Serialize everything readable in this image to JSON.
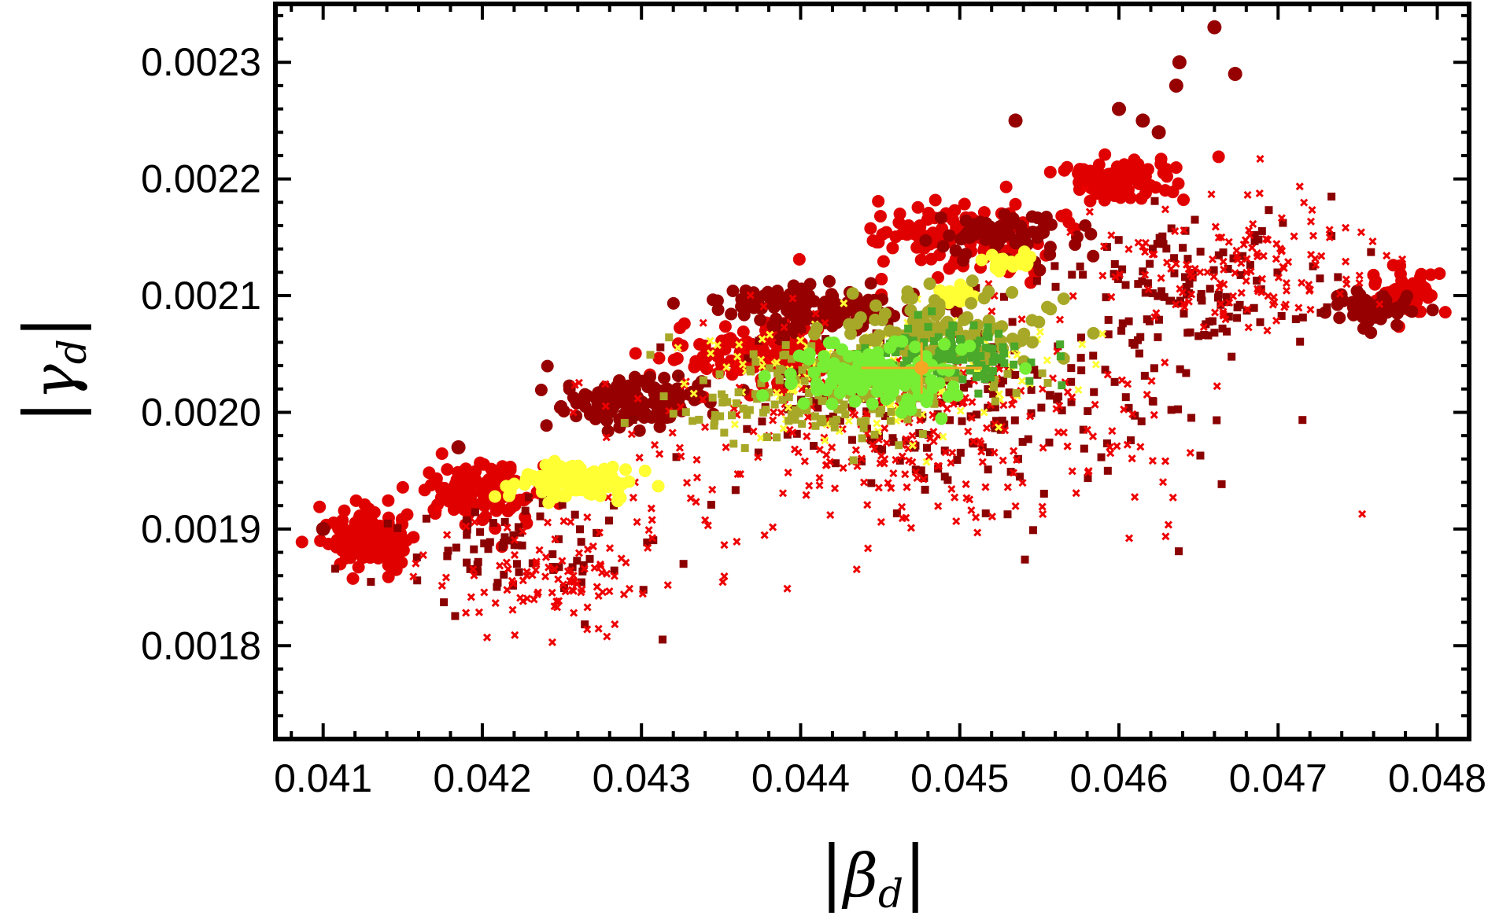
{
  "chart_data": {
    "type": "scatter",
    "title": "",
    "xlabel": "|β_d|",
    "ylabel": "|γ_d|",
    "xlabel_parts": {
      "bar_left": "|",
      "symbol": "β",
      "subscript": "d",
      "bar_right": "|"
    },
    "ylabel_parts": {
      "bar_left": "|",
      "symbol": "γ",
      "subscript": "d",
      "bar_right": "|"
    },
    "xlim": [
      0.0407,
      0.0482
    ],
    "ylim": [
      0.00172,
      0.00235
    ],
    "grid": false,
    "legend": "none",
    "x_ticks": [
      {
        "value": 0.041,
        "label": "0.041"
      },
      {
        "value": 0.042,
        "label": "0.042"
      },
      {
        "value": 0.043,
        "label": "0.043"
      },
      {
        "value": 0.044,
        "label": "0.044"
      },
      {
        "value": 0.045,
        "label": "0.045"
      },
      {
        "value": 0.046,
        "label": "0.046"
      },
      {
        "value": 0.047,
        "label": "0.047"
      },
      {
        "value": 0.048,
        "label": "0.048"
      }
    ],
    "y_ticks": [
      {
        "value": 0.0018,
        "label": "0.0018"
      },
      {
        "value": 0.0019,
        "label": "0.0019"
      },
      {
        "value": 0.002,
        "label": "0.0020"
      },
      {
        "value": 0.0021,
        "label": "0.0021"
      },
      {
        "value": 0.0022,
        "label": "0.0022"
      },
      {
        "value": 0.0023,
        "label": "0.0023"
      }
    ],
    "series": [
      {
        "color": "#e00000",
        "marker": "circle",
        "clusters": [
          {
            "center": [
              0.0413,
              0.00189
            ],
            "spread": [
              0.00025,
              2.5e-05
            ],
            "count": 140
          },
          {
            "center": [
              0.042,
              0.00193
            ],
            "spread": [
              0.0004,
              2.5e-05
            ],
            "count": 120
          },
          {
            "center": [
              0.0438,
              0.00205
            ],
            "spread": [
              0.0006,
              3e-05
            ],
            "count": 130
          },
          {
            "center": [
              0.045,
              0.00215
            ],
            "spread": [
              0.0006,
              3e-05
            ],
            "count": 130
          },
          {
            "center": [
              0.046,
              0.0022
            ],
            "spread": [
              0.0004,
              2e-05
            ],
            "count": 80
          },
          {
            "center": [
              0.0478,
              0.0021
            ],
            "spread": [
              0.00025,
              2e-05
            ],
            "count": 60
          }
        ]
      },
      {
        "color": "#960000",
        "marker": "circle",
        "clusters": [
          {
            "center": [
              0.0429,
              0.00201
            ],
            "spread": [
              0.0005,
              2.2e-05
            ],
            "count": 130
          },
          {
            "center": [
              0.0441,
              0.00209
            ],
            "spread": [
              0.0006,
              2e-05
            ],
            "count": 130
          },
          {
            "center": [
              0.0453,
              0.00215
            ],
            "spread": [
              0.0005,
              1.8e-05
            ],
            "count": 70
          },
          {
            "center": [
              0.0476,
              0.00209
            ],
            "spread": [
              0.0003,
              1.5e-05
            ],
            "count": 50
          }
        ]
      },
      {
        "color": "#960000",
        "marker": "circle",
        "points": [
          [
            0.041,
            0.0019
          ],
          [
            0.04185,
            0.00197
          ],
          [
            0.04535,
            0.00225
          ],
          [
            0.046,
            0.00226
          ],
          [
            0.04615,
            0.00225
          ],
          [
            0.04625,
            0.00224
          ],
          [
            0.04636,
            0.00228
          ],
          [
            0.04638,
            0.0023
          ],
          [
            0.0466,
            0.00233
          ],
          [
            0.04673,
            0.00229
          ]
        ]
      },
      {
        "color": "#8b0000",
        "marker": "square",
        "clusters": [
          {
            "center": [
              0.045,
              0.00201
            ],
            "spread": [
              0.0015,
              8e-05
            ],
            "count": 220
          },
          {
            "center": [
              0.0465,
              0.00211
            ],
            "spread": [
              0.0008,
              6e-05
            ],
            "count": 120
          },
          {
            "center": [
              0.0422,
              0.00188
            ],
            "spread": [
              0.0008,
              5e-05
            ],
            "count": 80
          }
        ]
      },
      {
        "color": "#ee0000",
        "marker": "cross",
        "clusters": [
          {
            "center": [
              0.0446,
              0.00199
            ],
            "spread": [
              0.0017,
              0.0001
            ],
            "count": 340
          },
          {
            "center": [
              0.0468,
              0.00213
            ],
            "spread": [
              0.0009,
              6e-05
            ],
            "count": 140
          },
          {
            "center": [
              0.0425,
              0.00186
            ],
            "spread": [
              0.0008,
              5e-05
            ],
            "count": 110
          }
        ]
      },
      {
        "color": "#ffff33",
        "marker": "circle",
        "clusters": [
          {
            "center": [
              0.0426,
              0.00194
            ],
            "spread": [
              0.00035,
              1.5e-05
            ],
            "count": 130
          },
          {
            "center": [
              0.0453,
              0.00213
            ],
            "spread": [
              0.00015,
              8e-06
            ],
            "count": 25
          },
          {
            "center": [
              0.045,
              0.0021
            ],
            "spread": [
              0.00012,
              8e-06
            ],
            "count": 20
          }
        ]
      },
      {
        "color": "#ffff33",
        "marker": "cross",
        "clusters": [
          {
            "center": [
              0.0445,
              0.00203
            ],
            "spread": [
              0.001,
              5e-05
            ],
            "count": 170
          }
        ]
      },
      {
        "color": "#a8a828",
        "marker": "square",
        "clusters": [
          {
            "center": [
              0.0443,
              0.00202
            ],
            "spread": [
              0.0009,
              4e-05
            ],
            "count": 230
          }
        ]
      },
      {
        "color": "#a8a828",
        "marker": "circle",
        "clusters": [
          {
            "center": [
              0.0449,
              0.00207
            ],
            "spread": [
              0.0007,
              4e-05
            ],
            "count": 110
          }
        ]
      },
      {
        "color": "#4aa82a",
        "marker": "square",
        "clusters": [
          {
            "center": [
              0.045,
              0.00205
            ],
            "spread": [
              0.0005,
              2.5e-05
            ],
            "count": 110
          }
        ]
      },
      {
        "color": "#77ee33",
        "marker": "circle",
        "clusters": [
          {
            "center": [
              0.0445,
              0.00203
            ],
            "spread": [
              0.0006,
              2.5e-05
            ],
            "count": 140
          }
        ]
      },
      {
        "color": "#f5a623",
        "marker": "errorbar",
        "points": [
          [
            0.04476,
            0.002038
          ]
        ],
        "x_error": [
          0.00038
        ],
        "y_error": [
          2.2e-05
        ]
      }
    ]
  }
}
